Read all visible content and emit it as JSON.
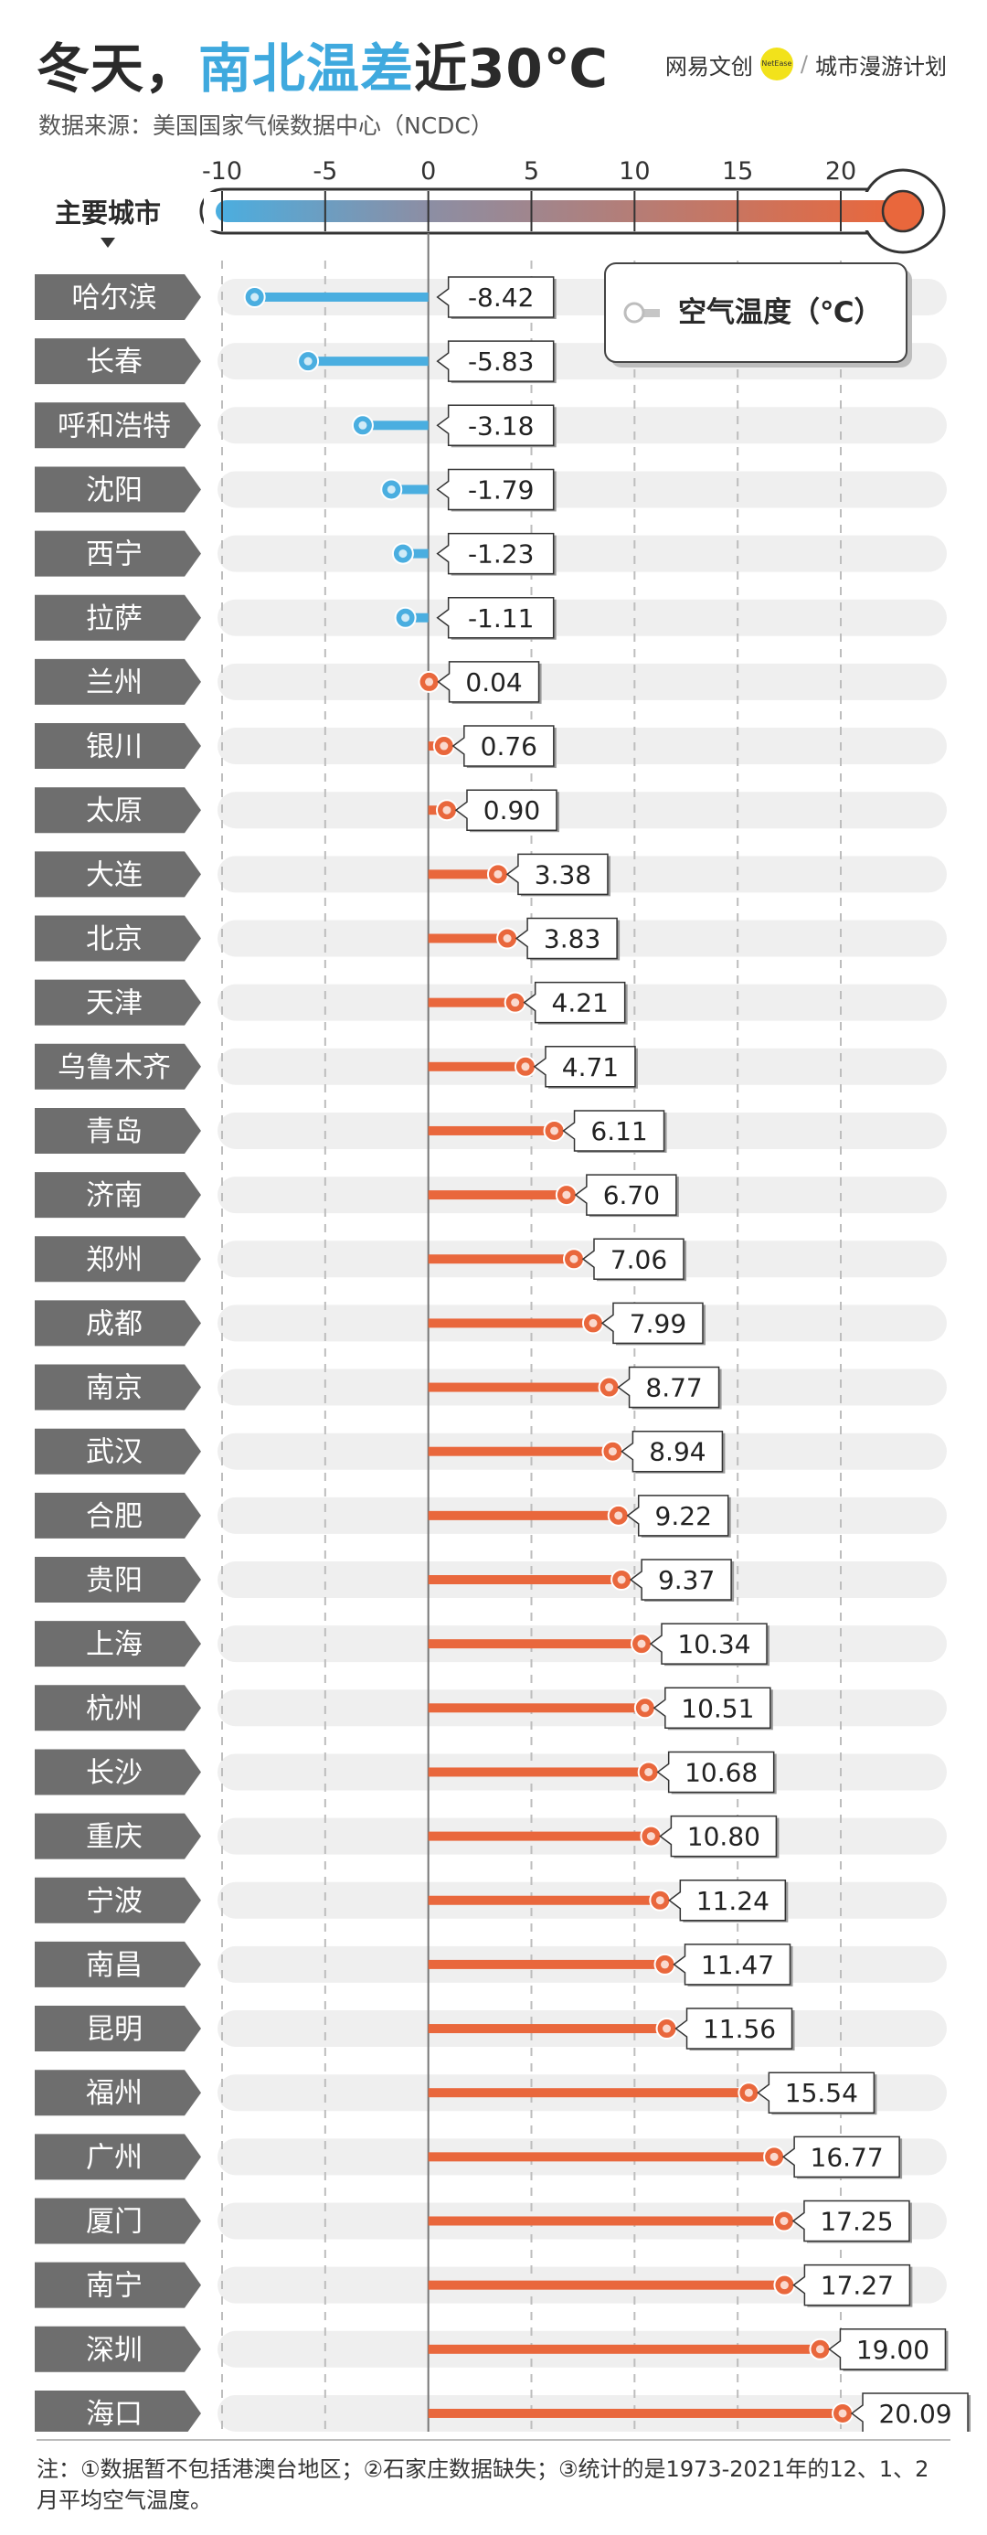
{
  "header": {
    "title_part1": "冬天，",
    "title_highlight": "南北温差",
    "title_part2": "近30℃",
    "brand_name": "网易文创",
    "brand_badge": "NetEase",
    "brand_sep": "/",
    "brand_program": "城市漫游计划",
    "source": "数据来源：美国国家气候数据中心（NCDC）"
  },
  "colors": {
    "cold": "#4aaee0",
    "warm": "#e9673c",
    "label_bg": "#6e6e6e",
    "row_bg": "#efefef"
  },
  "chart_data": {
    "type": "lollipop",
    "title": "冬天，南北温差近30℃",
    "y_header": "主要城市",
    "legend": "空气温度（℃）",
    "unit": "℃",
    "xlim": [
      -10,
      20
    ],
    "xticks": [
      "-10",
      "-5",
      "0",
      "5",
      "10",
      "15",
      "20"
    ],
    "categories": [
      "哈尔滨",
      "长春",
      "呼和浩特",
      "沈阳",
      "西宁",
      "拉萨",
      "兰州",
      "银川",
      "太原",
      "大连",
      "北京",
      "天津",
      "乌鲁木齐",
      "青岛",
      "济南",
      "郑州",
      "成都",
      "南京",
      "武汉",
      "合肥",
      "贵阳",
      "上海",
      "杭州",
      "长沙",
      "重庆",
      "宁波",
      "南昌",
      "昆明",
      "福州",
      "广州",
      "厦门",
      "南宁",
      "深圳",
      "海口"
    ],
    "values": [
      -8.42,
      -5.83,
      -3.18,
      -1.79,
      -1.23,
      -1.11,
      0.04,
      0.76,
      0.9,
      3.38,
      3.83,
      4.21,
      4.71,
      6.11,
      6.7,
      7.06,
      7.99,
      8.77,
      8.94,
      9.22,
      9.37,
      10.34,
      10.51,
      10.68,
      10.8,
      11.24,
      11.47,
      11.56,
      15.54,
      16.77,
      17.25,
      17.27,
      19.0,
      20.09
    ],
    "value_labels": [
      "-8.42",
      "-5.83",
      "-3.18",
      "-1.79",
      "-1.23",
      "-1.11",
      "0.04",
      "0.76",
      "0.90",
      "3.38",
      "3.83",
      "4.21",
      "4.71",
      "6.11",
      "6.70",
      "7.06",
      "7.99",
      "8.77",
      "8.94",
      "9.22",
      "9.37",
      "10.34",
      "10.51",
      "10.68",
      "10.80",
      "11.24",
      "11.47",
      "11.56",
      "15.54",
      "16.77",
      "17.25",
      "17.27",
      "19.00",
      "20.09"
    ]
  },
  "footer": {
    "note": "注：①数据暂不包括港澳台地区；②石家庄数据缺失；③统计的是1973-2021年的12、1、2月平均空气温度。"
  }
}
